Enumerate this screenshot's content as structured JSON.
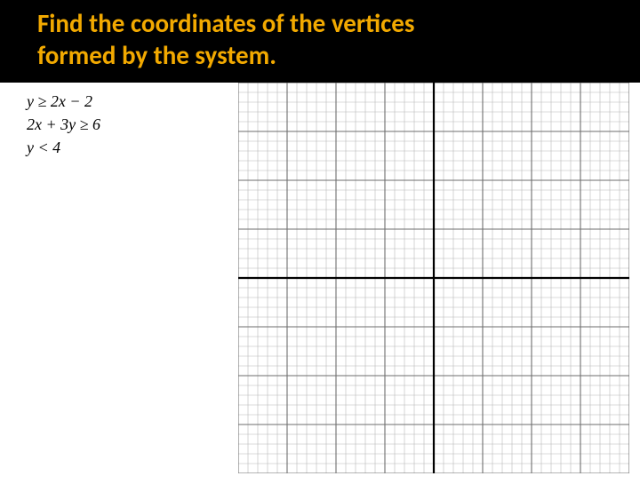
{
  "header": {
    "title_line1": "Find the coordinates of the vertices",
    "title_line2": "formed by the system.",
    "bg_color": "#000000",
    "text_color": "#f2a900",
    "title_fontsize": 29
  },
  "equations": {
    "lines": [
      "y ≥ 2x − 2",
      "2x + 3y ≥ 6",
      "y < 4"
    ],
    "fontsize": 18,
    "color": "#000000"
  },
  "graph": {
    "type": "coordinate-grid",
    "grid_count": 40,
    "major_every": 5,
    "minor_color": "#b8b8b8",
    "major_color": "#6e6e6e",
    "axis_color": "#000000",
    "minor_width": 0.6,
    "major_width": 1.1,
    "axis_width": 2.2,
    "background_color": "#ffffff",
    "xlim": [
      -20,
      20
    ],
    "ylim": [
      -20,
      20
    ]
  }
}
